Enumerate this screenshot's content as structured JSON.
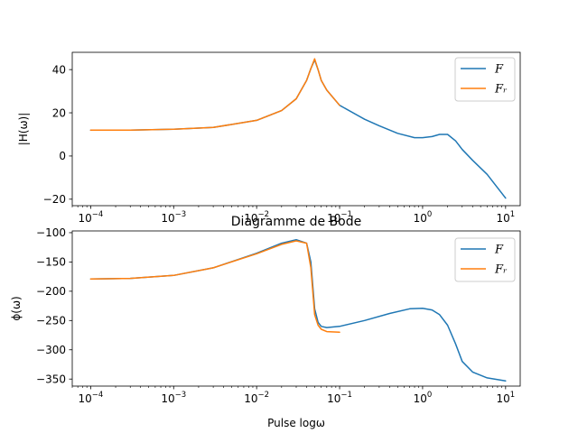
{
  "chart_data": [
    {
      "type": "line",
      "name": "magnitude",
      "title": "",
      "xlabel": "",
      "ylabel": "|H(ω)|",
      "xscale": "log",
      "xlim": [
        6e-05,
        15
      ],
      "ylim": [
        -23,
        48
      ],
      "xticks": [
        0.0001,
        0.001,
        0.01,
        0.1,
        1,
        10
      ],
      "xtick_labels": [
        {
          "base": "10",
          "exp": "−4"
        },
        {
          "base": "10",
          "exp": "−3"
        },
        {
          "base": "10",
          "exp": "−2"
        },
        {
          "base": "10",
          "exp": "−1"
        },
        {
          "base": "10",
          "exp": "0"
        },
        {
          "base": "10",
          "exp": "1"
        }
      ],
      "yticks": [
        -20,
        0,
        20,
        40
      ],
      "ytick_labels": [
        "−20",
        "0",
        "20",
        "40"
      ],
      "legend_position": "top-right",
      "series": [
        {
          "name": "F",
          "color": "#1f77b4",
          "x": [
            0.0001,
            0.0003,
            0.001,
            0.003,
            0.01,
            0.02,
            0.03,
            0.04,
            0.045,
            0.05,
            0.055,
            0.06,
            0.07,
            0.1,
            0.2,
            0.3,
            0.5,
            0.8,
            1.0,
            1.3,
            1.6,
            2.0,
            2.5,
            3.0,
            4.0,
            6.0,
            10.0
          ],
          "values": [
            12,
            12,
            12.4,
            13.2,
            16.5,
            21,
            26.5,
            35,
            40.5,
            44.5,
            40,
            35,
            30.5,
            23.5,
            17,
            14,
            10.5,
            8.5,
            8.5,
            9,
            10,
            10,
            7,
            3,
            -2,
            -8.5,
            -19.5
          ]
        },
        {
          "name": "Fᵣ",
          "color": "#ff7f0e",
          "x": [
            0.0001,
            0.0003,
            0.001,
            0.003,
            0.01,
            0.02,
            0.03,
            0.04,
            0.045,
            0.05,
            0.055,
            0.06,
            0.07,
            0.1
          ],
          "values": [
            12,
            12,
            12.4,
            13.2,
            16.5,
            21,
            26.5,
            35,
            40.5,
            45,
            40,
            35,
            30.5,
            23.5
          ]
        }
      ]
    },
    {
      "type": "line",
      "name": "phase",
      "title": "Diagramme de Bode",
      "xlabel": "Pulse logω",
      "ylabel": "ϕ(ω)",
      "xscale": "log",
      "xlim": [
        6e-05,
        15
      ],
      "ylim": [
        -362,
        -97
      ],
      "xticks": [
        0.0001,
        0.001,
        0.01,
        0.1,
        1,
        10
      ],
      "xtick_labels": [
        {
          "base": "10",
          "exp": "−4"
        },
        {
          "base": "10",
          "exp": "−3"
        },
        {
          "base": "10",
          "exp": "−2"
        },
        {
          "base": "10",
          "exp": "−1"
        },
        {
          "base": "10",
          "exp": "0"
        },
        {
          "base": "10",
          "exp": "1"
        }
      ],
      "yticks": [
        -100,
        -150,
        -200,
        -250,
        -300,
        -350
      ],
      "ytick_labels": [
        "−100",
        "−150",
        "−200",
        "−250",
        "−300",
        "−350"
      ],
      "legend_position": "top-right",
      "series": [
        {
          "name": "F",
          "color": "#1f77b4",
          "x": [
            0.0001,
            0.0003,
            0.001,
            0.003,
            0.01,
            0.02,
            0.03,
            0.04,
            0.045,
            0.05,
            0.055,
            0.06,
            0.07,
            0.1,
            0.2,
            0.4,
            0.7,
            1.0,
            1.3,
            1.6,
            2.0,
            2.5,
            3.0,
            4.0,
            6.0,
            10.0
          ],
          "values": [
            -179,
            -178,
            -173,
            -160,
            -135,
            -118,
            -112,
            -118,
            -150,
            -230,
            -253,
            -260,
            -262,
            -260,
            -250,
            -238,
            -230,
            -229,
            -232,
            -240,
            -258,
            -290,
            -320,
            -338,
            -348,
            -353
          ]
        },
        {
          "name": "Fᵣ",
          "color": "#ff7f0e",
          "x": [
            0.0001,
            0.0003,
            0.001,
            0.003,
            0.01,
            0.02,
            0.03,
            0.04,
            0.045,
            0.05,
            0.055,
            0.06,
            0.07,
            0.1
          ],
          "values": [
            -179,
            -178,
            -173,
            -160,
            -136,
            -120,
            -114,
            -118,
            -160,
            -240,
            -258,
            -265,
            -269,
            -270
          ]
        }
      ]
    }
  ]
}
